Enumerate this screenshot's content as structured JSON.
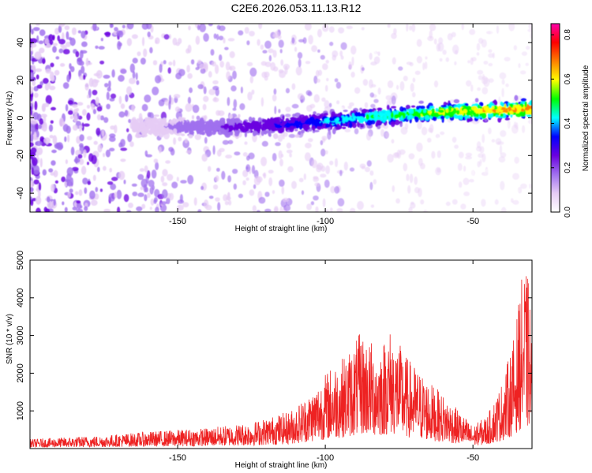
{
  "title": "C2E6.2026.053.11.13.R12",
  "colors": {
    "snr_line": "#ee2222",
    "frame": "#000000"
  },
  "chart_data": [
    {
      "type": "heatmap",
      "title": "C2E6.2026.053.11.13.R12",
      "xlabel": "Height of straight line (km)",
      "ylabel": "Frequency (Hz)",
      "xlim": [
        -200,
        -30
      ],
      "ylim": [
        -50,
        50
      ],
      "x_ticks": [
        -150,
        -100,
        -50
      ],
      "y_ticks": [
        -40,
        -20,
        0,
        20,
        40
      ],
      "colorbar": {
        "label": "Normalized spectral amplitude",
        "range": [
          0,
          0.85
        ],
        "ticks": [
          0,
          0.2,
          0.4,
          0.6,
          0.8
        ],
        "colormap": [
          "#ffffff",
          "#e6ccf5",
          "#a070ee",
          "#6a00e0",
          "#0000ff",
          "#00ffff",
          "#00ff00",
          "#ffff00",
          "#ff8000",
          "#ff0000",
          "#ff00aa"
        ]
      },
      "ridge": [
        {
          "x": -160,
          "y": -5
        },
        {
          "x": -130,
          "y": -5
        },
        {
          "x": -100,
          "y": -2
        },
        {
          "x": -80,
          "y": 1
        },
        {
          "x": -60,
          "y": 3
        },
        {
          "x": -40,
          "y": 4
        },
        {
          "x": -30,
          "y": 5
        }
      ],
      "grid": false
    },
    {
      "type": "line",
      "xlabel": "Height of straight line (km)",
      "ylabel": "SNR (10 * v/v)",
      "xlim": [
        -200,
        -30
      ],
      "ylim": [
        0,
        5000
      ],
      "x_ticks": [
        -150,
        -100,
        -50
      ],
      "y_ticks": [
        1000,
        2000,
        3000,
        4000,
        5000
      ],
      "envelope": [
        {
          "x": -200,
          "y": 250
        },
        {
          "x": -175,
          "y": 350
        },
        {
          "x": -160,
          "y": 450
        },
        {
          "x": -140,
          "y": 550
        },
        {
          "x": -125,
          "y": 700
        },
        {
          "x": -112,
          "y": 1000
        },
        {
          "x": -105,
          "y": 1500
        },
        {
          "x": -98,
          "y": 2200
        },
        {
          "x": -93,
          "y": 2500
        },
        {
          "x": -88,
          "y": 3100
        },
        {
          "x": -82,
          "y": 2700
        },
        {
          "x": -78,
          "y": 3200
        },
        {
          "x": -72,
          "y": 2400
        },
        {
          "x": -65,
          "y": 1800
        },
        {
          "x": -57,
          "y": 1200
        },
        {
          "x": -50,
          "y": 600
        },
        {
          "x": -45,
          "y": 900
        },
        {
          "x": -40,
          "y": 1800
        },
        {
          "x": -36,
          "y": 3000
        },
        {
          "x": -33,
          "y": 4800
        },
        {
          "x": -31,
          "y": 4500
        },
        {
          "x": -30,
          "y": 3000
        }
      ],
      "grid": false
    }
  ]
}
